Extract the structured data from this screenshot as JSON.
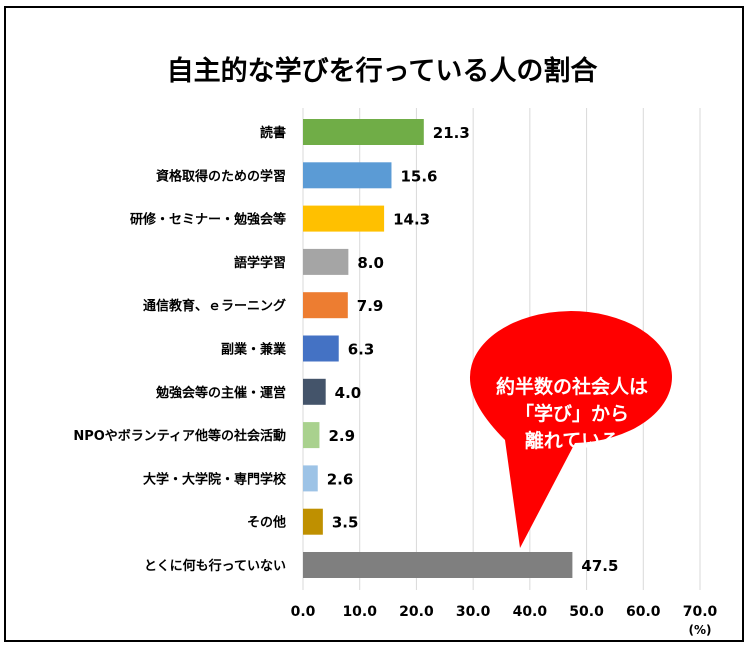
{
  "chart_data": {
    "type": "bar",
    "orientation": "horizontal",
    "title": "自主的な学びを行っている人の割合",
    "unit": "(%)",
    "xlim": [
      0,
      70
    ],
    "xticks": [
      "0.0",
      "10.0",
      "20.0",
      "30.0",
      "40.0",
      "50.0",
      "60.0",
      "70.0"
    ],
    "grid": "vertical",
    "categories": [
      "読書",
      "資格取得のための学習",
      "研修・セミナー・勉強会等",
      "語学学習",
      "通信教育、ｅラーニング",
      "副業・兼業",
      "勉強会等の主催・運営",
      "NPOやボランティア他等の社会活動",
      "大学・大学院・専門学校",
      "その他",
      "とくに何も行っていない"
    ],
    "values": [
      21.3,
      15.6,
      14.3,
      8.0,
      7.9,
      6.3,
      4.0,
      2.9,
      2.6,
      3.5,
      47.5
    ],
    "value_labels": [
      "21.3",
      "15.6",
      "14.3",
      "8.0",
      "7.9",
      "6.3",
      "4.0",
      "2.9",
      "2.6",
      "3.5",
      "47.5"
    ],
    "colors": [
      "#70ad47",
      "#5b9bd5",
      "#ffc000",
      "#a5a5a5",
      "#ed7d31",
      "#4472c4",
      "#44546a",
      "#a9d18e",
      "#9dc3e6",
      "#bf9000",
      "#7f7f7f"
    ]
  },
  "callout": {
    "lines": [
      "約半数の社会人は",
      "「学び」から",
      "離れている"
    ],
    "color": "#ff0000"
  }
}
